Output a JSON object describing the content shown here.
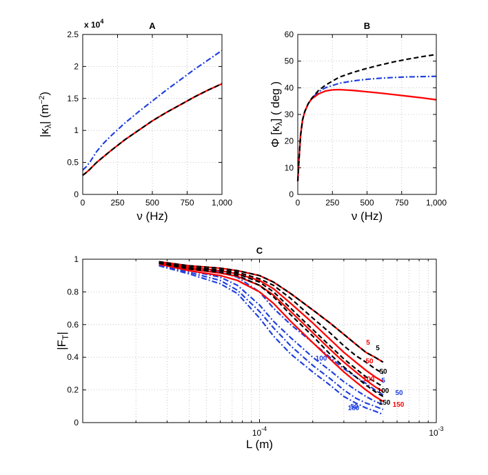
{
  "chart_data": [
    {
      "type": "line",
      "title": "A",
      "xlabel": "ν (Hz)",
      "ylabel": "|κ_λ| (m^−2)",
      "y_multiplier": "x 10",
      "y_multiplier_exp": "4",
      "xlim": [
        0,
        1000
      ],
      "ylim": [
        0,
        25000
      ],
      "xticks": [
        0,
        250,
        500,
        750,
        1000
      ],
      "xtick_labels": [
        "0",
        "250",
        "500",
        "750",
        "1,000"
      ],
      "yticks": [
        0,
        5000,
        10000,
        15000,
        20000,
        25000
      ],
      "ytick_labels": [
        "0",
        "0.5",
        "1",
        "1.5",
        "2",
        "2.5"
      ],
      "grid": true,
      "series": [
        {
          "name": "dash-dot",
          "color": "#1f3fe0",
          "style": "dashdot",
          "x": [
            0,
            25,
            50,
            100,
            150,
            200,
            300,
            400,
            500,
            600,
            700,
            800,
            900,
            1000
          ],
          "y": [
            3800,
            4300,
            5000,
            6700,
            8000,
            9100,
            11100,
            12900,
            14600,
            16300,
            17900,
            19500,
            21000,
            22500
          ]
        },
        {
          "name": "solid",
          "color": "#ff0000",
          "style": "solid",
          "x": [
            0,
            25,
            50,
            100,
            150,
            200,
            300,
            400,
            500,
            600,
            700,
            800,
            900,
            1000
          ],
          "y": [
            3000,
            3400,
            3900,
            5000,
            5900,
            6800,
            8500,
            10000,
            11500,
            12800,
            14000,
            15200,
            16300,
            17300
          ]
        },
        {
          "name": "dashed",
          "color": "#000000",
          "style": "dashed",
          "x": [
            0,
            25,
            50,
            100,
            150,
            200,
            300,
            400,
            500,
            600,
            700,
            800,
            900,
            1000
          ],
          "y": [
            3000,
            3400,
            3900,
            5000,
            5900,
            6800,
            8500,
            10000,
            11500,
            12800,
            14000,
            15200,
            16300,
            17300
          ]
        }
      ]
    },
    {
      "type": "line",
      "title": "B",
      "xlabel": "ν (Hz)",
      "ylabel": "Φ [κ_λ] ( deg )",
      "xlim": [
        0,
        1000
      ],
      "ylim": [
        0,
        60
      ],
      "xticks": [
        0,
        250,
        500,
        750,
        1000
      ],
      "xtick_labels": [
        "0",
        "250",
        "500",
        "750",
        "1,000"
      ],
      "yticks": [
        0,
        10,
        20,
        30,
        40,
        50,
        60
      ],
      "ytick_labels": [
        "0",
        "10",
        "20",
        "30",
        "40",
        "50",
        "60"
      ],
      "grid": true,
      "series": [
        {
          "name": "dashed",
          "color": "#000000",
          "style": "dashed",
          "x": [
            0,
            10,
            20,
            35,
            50,
            75,
            100,
            150,
            200,
            300,
            400,
            500,
            600,
            700,
            800,
            900,
            1000
          ],
          "y": [
            5,
            14,
            22,
            28,
            31,
            34,
            36,
            39,
            41,
            44,
            45.8,
            47.3,
            48.6,
            49.8,
            50.8,
            51.7,
            52.5
          ]
        },
        {
          "name": "dash-dot",
          "color": "#1f3fe0",
          "style": "dashdot",
          "x": [
            0,
            10,
            20,
            35,
            50,
            75,
            100,
            150,
            200,
            300,
            400,
            500,
            600,
            700,
            800,
            900,
            1000
          ],
          "y": [
            5,
            14,
            22,
            28,
            31,
            34,
            36,
            38.5,
            40,
            41.7,
            42.6,
            43.2,
            43.6,
            43.9,
            44.1,
            44.2,
            44.3
          ]
        },
        {
          "name": "solid",
          "color": "#ff0000",
          "style": "solid",
          "x": [
            0,
            10,
            20,
            35,
            50,
            75,
            100,
            150,
            200,
            250,
            300,
            400,
            500,
            600,
            700,
            800,
            900,
            1000
          ],
          "y": [
            5,
            14,
            22,
            28,
            31,
            34,
            35.8,
            37.7,
            38.8,
            39.2,
            39.3,
            39.0,
            38.5,
            38.0,
            37.4,
            36.8,
            36.2,
            35.5
          ]
        }
      ]
    },
    {
      "type": "line",
      "title": "C",
      "xlabel": "L (m)",
      "ylabel": "|F_T|",
      "xscale": "log",
      "xlim": [
        1e-05,
        0.001
      ],
      "ylim": [
        0,
        1
      ],
      "xtick_labels": [
        {
          "base": "10",
          "exp": "-4",
          "value": 0.0001
        },
        {
          "base": "10",
          "exp": "-3",
          "value": 0.001
        }
      ],
      "yticks": [
        0,
        0.2,
        0.4,
        0.6,
        0.8,
        1
      ],
      "ytick_labels": [
        "0",
        "0.2",
        "0.4",
        "0.6",
        "0.8",
        "1"
      ],
      "grid": true,
      "x": [
        2.7e-05,
        4e-05,
        6e-05,
        7.5e-05,
        0.0001,
        0.00012,
        0.00015,
        0.0002,
        0.00025,
        0.0003,
        0.00035,
        0.0004,
        0.00045,
        0.0005
      ],
      "series": [
        {
          "name": "black 5",
          "label": "5",
          "color": "#000000",
          "style": "dashed",
          "y": [
            0.985,
            0.96,
            0.945,
            0.93,
            0.9,
            0.86,
            0.79,
            0.69,
            0.61,
            0.54,
            0.48,
            0.43,
            0.4,
            0.37
          ]
        },
        {
          "name": "red 5",
          "label": "5",
          "color": "#ff0000",
          "style": "solid",
          "y": [
            0.985,
            0.96,
            0.945,
            0.93,
            0.9,
            0.86,
            0.79,
            0.69,
            0.61,
            0.54,
            0.48,
            0.43,
            0.4,
            0.37
          ]
        },
        {
          "name": "blue 5",
          "label": "5",
          "color": "#1f3fe0",
          "style": "dashdot",
          "y": [
            0.98,
            0.95,
            0.92,
            0.89,
            0.8,
            0.7,
            0.6,
            0.49,
            0.4,
            0.33,
            0.28,
            0.24,
            0.2,
            0.17
          ]
        },
        {
          "name": "black 50",
          "label": "50",
          "color": "#000000",
          "style": "dashed",
          "y": [
            0.98,
            0.95,
            0.935,
            0.92,
            0.88,
            0.84,
            0.76,
            0.64,
            0.55,
            0.47,
            0.41,
            0.37,
            0.33,
            0.3
          ]
        },
        {
          "name": "red 50",
          "label": "50",
          "color": "#ff0000",
          "style": "solid",
          "y": [
            0.98,
            0.95,
            0.93,
            0.91,
            0.87,
            0.82,
            0.73,
            0.61,
            0.51,
            0.43,
            0.37,
            0.32,
            0.28,
            0.25
          ]
        },
        {
          "name": "blue 50",
          "label": "50",
          "color": "#1f3fe0",
          "style": "dashdot",
          "y": [
            0.97,
            0.93,
            0.89,
            0.84,
            0.72,
            0.62,
            0.52,
            0.4,
            0.32,
            0.25,
            0.2,
            0.16,
            0.13,
            0.11
          ]
        },
        {
          "name": "black 100",
          "label": "100",
          "color": "#000000",
          "style": "dashed",
          "y": [
            0.98,
            0.945,
            0.93,
            0.91,
            0.86,
            0.8,
            0.7,
            0.57,
            0.47,
            0.39,
            0.33,
            0.28,
            0.25,
            0.22
          ]
        },
        {
          "name": "red 100",
          "label": "100",
          "color": "#ff0000",
          "style": "solid",
          "y": [
            0.975,
            0.94,
            0.915,
            0.895,
            0.84,
            0.78,
            0.68,
            0.55,
            0.45,
            0.37,
            0.31,
            0.26,
            0.22,
            0.19
          ]
        },
        {
          "name": "blue 100",
          "label": "100",
          "color": "#1f3fe0",
          "style": "dashdot",
          "y": [
            0.965,
            0.92,
            0.87,
            0.81,
            0.68,
            0.58,
            0.47,
            0.35,
            0.27,
            0.2,
            0.15,
            0.12,
            0.1,
            0.08
          ]
        },
        {
          "name": "black 150",
          "label": "150",
          "color": "#000000",
          "style": "dashed",
          "y": [
            0.975,
            0.94,
            0.92,
            0.9,
            0.84,
            0.77,
            0.66,
            0.53,
            0.42,
            0.34,
            0.28,
            0.23,
            0.19,
            0.16
          ]
        },
        {
          "name": "red 150",
          "label": "150",
          "color": "#ff0000",
          "style": "solid",
          "y": [
            0.97,
            0.93,
            0.9,
            0.87,
            0.8,
            0.73,
            0.62,
            0.49,
            0.39,
            0.31,
            0.25,
            0.2,
            0.16,
            0.13
          ]
        },
        {
          "name": "blue 150",
          "label": "150",
          "color": "#1f3fe0",
          "style": "dashdot",
          "y": [
            0.96,
            0.91,
            0.85,
            0.79,
            0.64,
            0.53,
            0.42,
            0.31,
            0.23,
            0.16,
            0.12,
            0.09,
            0.07,
            0.05
          ]
        }
      ],
      "annotations": [
        {
          "text": "5",
          "color": "#ff0000"
        },
        {
          "text": "5",
          "color": "#000000"
        },
        {
          "text": "50",
          "color": "#ff0000"
        },
        {
          "text": "50",
          "color": "#000000"
        },
        {
          "text": "100",
          "color": "#ff0000"
        },
        {
          "text": "5",
          "color": "#1f3fe0"
        },
        {
          "text": "100",
          "color": "#1f3fe0"
        },
        {
          "text": "50",
          "color": "#1f3fe0"
        },
        {
          "text": "100",
          "color": "#000000"
        },
        {
          "text": "50",
          "color": "#1f3fe0"
        },
        {
          "text": "150",
          "color": "#000000"
        },
        {
          "text": "150",
          "color": "#ff0000"
        },
        {
          "text": "150",
          "color": "#1f3fe0"
        }
      ]
    }
  ]
}
